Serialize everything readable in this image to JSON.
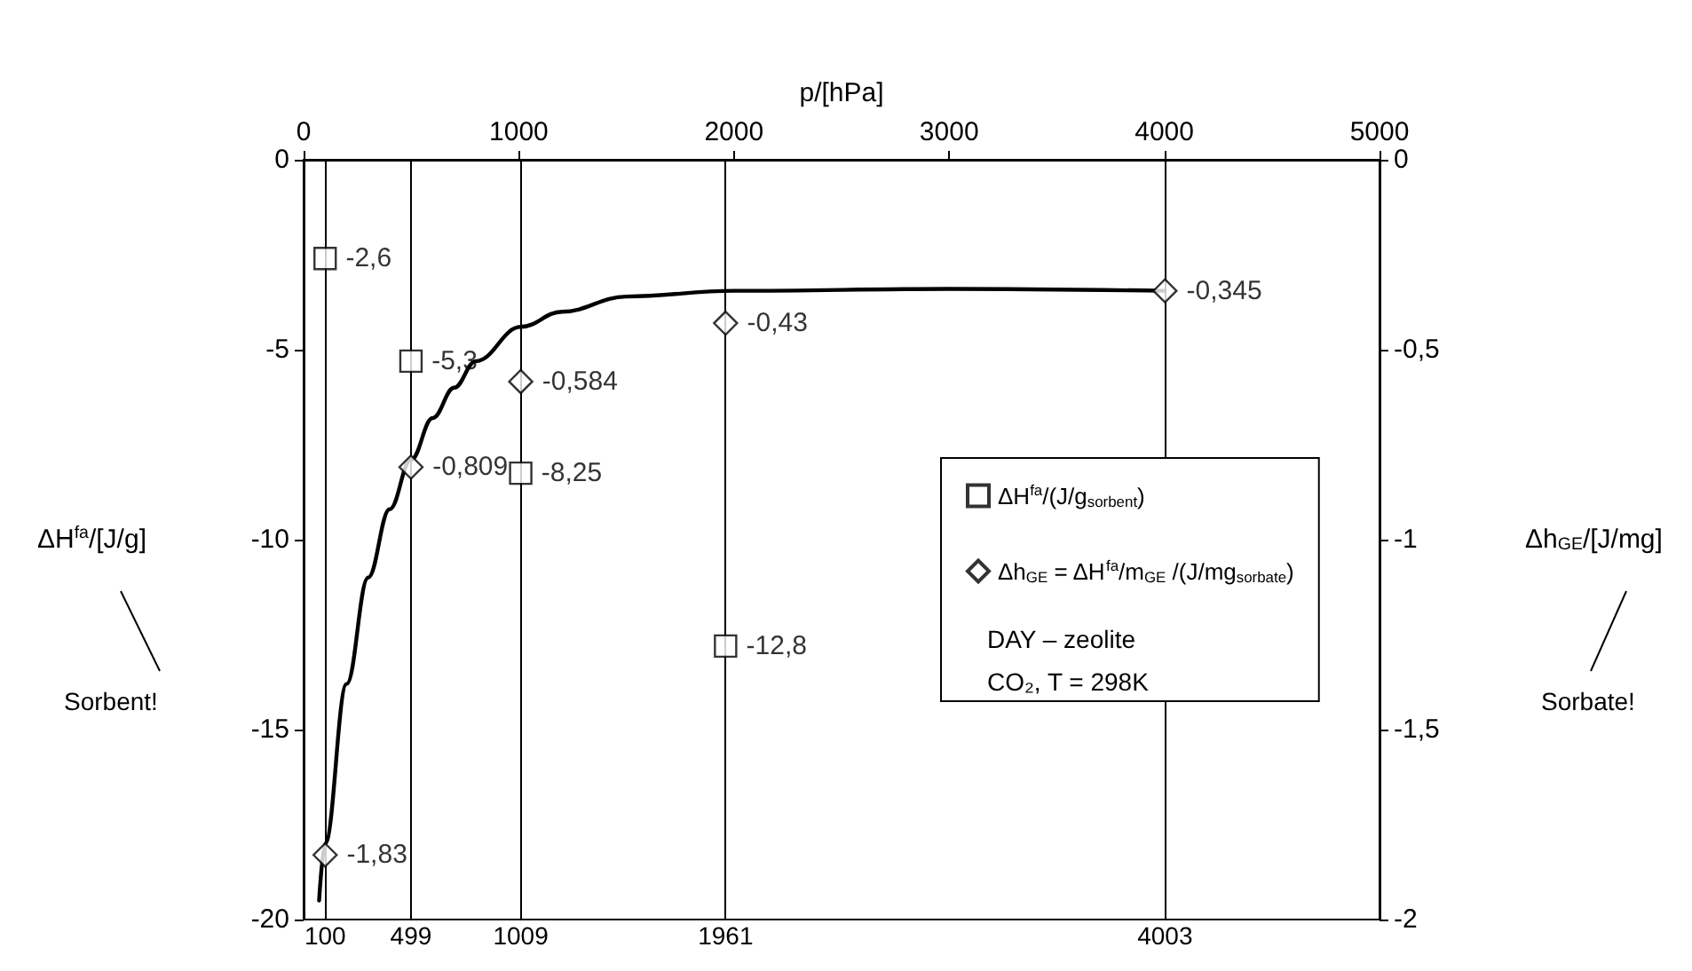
{
  "chart_data": {
    "type": "scatter",
    "xlabel": "p/[hPa]",
    "ylabel": "ΔH$^{fa}$/[J/g]",
    "y2label": "Δh$_{GE}$/[J/mg]",
    "xlim": [
      0,
      5000
    ],
    "xticks": [
      0,
      1000,
      2000,
      3000,
      4000,
      5000
    ],
    "ylim": [
      -20,
      0
    ],
    "yticks": [
      -20,
      -15,
      -10,
      -5,
      0
    ],
    "y2lim": [
      -2,
      0
    ],
    "y2ticks": [
      {
        "value": -2,
        "label": "-2"
      },
      {
        "value": -1.5,
        "label": "-1,5"
      },
      {
        "value": -1,
        "label": "-1"
      },
      {
        "value": -0.5,
        "label": "-0,5"
      },
      {
        "value": 0,
        "label": "0"
      }
    ],
    "grid": false,
    "legend": "right",
    "series": [
      {
        "name": "ΔH$^{fa}$/(J/g$_{sorbent}$)",
        "marker": "square",
        "color": "#000000",
        "x": [
          100,
          499,
          1009,
          1961
        ],
        "values": [
          -2.6,
          -5.3,
          -8.25,
          -12.8
        ],
        "value_labels": [
          "-2,6",
          "-5,3",
          "-8,25",
          "-12,8"
        ]
      },
      {
        "name": "Δh$_{GE}$ = ΔH$^{fa}$/m$_{GE}$ /(J/mg$_{sorbate}$)",
        "marker": "diamond",
        "axis": "y2",
        "color": "#000000",
        "x": [
          100,
          499,
          1009,
          1961,
          4003
        ],
        "values": [
          -1.83,
          -0.809,
          -0.584,
          -0.43,
          -0.345
        ],
        "value_labels": [
          "-1,83",
          "-0,809",
          "-0,584",
          "-0,43",
          "-0,345"
        ]
      },
      {
        "type": "line",
        "marker": "none",
        "line_style": "solid",
        "axis": "y2",
        "color": "#000000",
        "x": [
          72,
          100,
          200,
          300,
          400,
          499,
          600,
          700,
          800,
          1009,
          1200,
          1500,
          2000,
          3000,
          4003
        ],
        "values": [
          -1.95,
          -1.8,
          -1.38,
          -1.1,
          -0.92,
          -0.79,
          -0.68,
          -0.6,
          -0.53,
          -0.44,
          -0.4,
          -0.36,
          -0.345,
          -0.34,
          -0.345
        ]
      }
    ],
    "ref_lines": [
      {
        "axis": "x",
        "value": 100,
        "label": "100"
      },
      {
        "axis": "x",
        "value": 499,
        "label": "499"
      },
      {
        "axis": "x",
        "value": 1009,
        "label": "1009"
      },
      {
        "axis": "x",
        "value": 1961,
        "label": "1961"
      },
      {
        "axis": "x",
        "value": 4003,
        "label": "4003"
      }
    ],
    "annotations": [
      "Sorbent!",
      "Sorbate!",
      "DAY – zeolite",
      "CO₂, T = 298K"
    ]
  }
}
